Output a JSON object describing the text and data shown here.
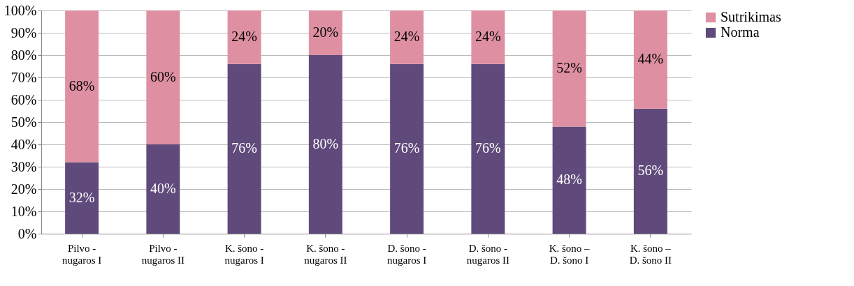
{
  "chart_data": {
    "type": "bar",
    "stacked": true,
    "categories": [
      "Pilvo -\nnugaros I",
      "Pilvo -\nnugaros II",
      "K. šono -\nnugaros I",
      "K. šono -\nnugaros II",
      "D. šono -\nnugaros I",
      "D. šono -\nnugaros II",
      "K. šono –\nD. šono I",
      "K. šono –\nD. šono II"
    ],
    "series": [
      {
        "name": "Norma",
        "color": "#5f4a7b",
        "values": [
          32,
          40,
          76,
          80,
          76,
          76,
          48,
          56
        ],
        "value_labels": [
          "32%",
          "40%",
          "76%",
          "80%",
          "76%",
          "76%",
          "48%",
          "56%"
        ]
      },
      {
        "name": "Sutrikimas",
        "color": "#de90a2",
        "values": [
          68,
          60,
          24,
          20,
          24,
          24,
          52,
          44
        ],
        "value_labels": [
          "68%",
          "60%",
          "24%",
          "20%",
          "24%",
          "24%",
          "52%",
          "44%"
        ]
      }
    ],
    "ylim": [
      0,
      100
    ],
    "yticks": [
      {
        "value": 0,
        "label": "0%"
      },
      {
        "value": 10,
        "label": "10%"
      },
      {
        "value": 20,
        "label": "20%"
      },
      {
        "value": 30,
        "label": "30%"
      },
      {
        "value": 40,
        "label": "40%"
      },
      {
        "value": 50,
        "label": "50%"
      },
      {
        "value": 60,
        "label": "60%"
      },
      {
        "value": 70,
        "label": "70%"
      },
      {
        "value": 80,
        "label": "80%"
      },
      {
        "value": 90,
        "label": "90%"
      },
      {
        "value": 100,
        "label": "100%"
      }
    ],
    "grid": "y",
    "legend": "right"
  }
}
